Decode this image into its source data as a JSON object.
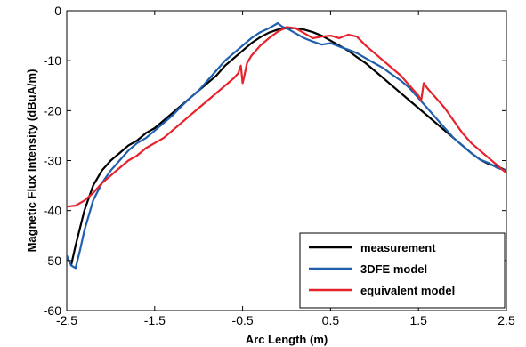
{
  "chart_data": {
    "type": "line",
    "title": "",
    "xlabel": "Arc Length (m)",
    "ylabel": "Magnetic Flux Intensity (dBuA/m)",
    "xlim": [
      -2.5,
      2.5
    ],
    "ylim": [
      -60,
      0
    ],
    "xticks": [
      -2.5,
      -1.5,
      -0.5,
      0.5,
      1.5,
      2.5
    ],
    "xtick_labels": [
      "-2.5",
      "-1.5",
      "-0.5",
      "0.5",
      "1.5",
      "2.5"
    ],
    "yticks": [
      0,
      -10,
      -20,
      -30,
      -40,
      -50,
      -60
    ],
    "ytick_labels": [
      "0",
      "-10",
      "-20",
      "-30",
      "-40",
      "-50",
      "-60"
    ],
    "grid": false,
    "legend_position": "bottom-right",
    "series": [
      {
        "name": "measurement",
        "color": "#000000",
        "x": [
          -2.45,
          -2.4,
          -2.3,
          -2.2,
          -2.1,
          -2.0,
          -1.9,
          -1.8,
          -1.7,
          -1.6,
          -1.5,
          -1.4,
          -1.3,
          -1.2,
          -1.1,
          -1.0,
          -0.9,
          -0.8,
          -0.7,
          -0.6,
          -0.5,
          -0.4,
          -0.3,
          -0.2,
          -0.1,
          0.0,
          0.1,
          0.2,
          0.3,
          0.4,
          0.5,
          0.6,
          0.7,
          0.8,
          0.9,
          1.0,
          1.1,
          1.2,
          1.3,
          1.4,
          1.5,
          1.6,
          1.7,
          1.8,
          1.9,
          2.0,
          2.1,
          2.2,
          2.3,
          2.4,
          2.5
        ],
        "y": [
          -51,
          -47,
          -40,
          -35,
          -32,
          -30,
          -28.5,
          -27,
          -26,
          -24.5,
          -23.5,
          -22,
          -20.5,
          -19,
          -17.5,
          -16,
          -14.5,
          -13,
          -11,
          -9.5,
          -8,
          -6.5,
          -5.3,
          -4.4,
          -3.8,
          -3.5,
          -3.5,
          -3.8,
          -4.3,
          -5,
          -6,
          -7,
          -8,
          -9.3,
          -10.5,
          -12,
          -13.5,
          -15,
          -16.5,
          -18,
          -19.5,
          -21,
          -22.5,
          -24,
          -25.5,
          -27,
          -28.5,
          -29.8,
          -30.7,
          -31.2,
          -32
        ]
      },
      {
        "name": "3DFE model",
        "color": "#1f5fae",
        "x": [
          -2.5,
          -2.45,
          -2.4,
          -2.35,
          -2.3,
          -2.2,
          -2.1,
          -2.0,
          -1.9,
          -1.8,
          -1.7,
          -1.6,
          -1.5,
          -1.4,
          -1.3,
          -1.2,
          -1.1,
          -1.0,
          -0.9,
          -0.8,
          -0.7,
          -0.6,
          -0.5,
          -0.4,
          -0.3,
          -0.2,
          -0.15,
          -0.1,
          -0.05,
          0.0,
          0.1,
          0.2,
          0.3,
          0.4,
          0.5,
          0.6,
          0.7,
          0.8,
          0.9,
          1.0,
          1.1,
          1.2,
          1.3,
          1.4,
          1.5,
          1.6,
          1.7,
          1.8,
          1.9,
          2.0,
          2.1,
          2.2,
          2.3,
          2.4,
          2.5
        ],
        "y": [
          -49,
          -51,
          -51.5,
          -48,
          -44,
          -38,
          -34.5,
          -32,
          -30,
          -28,
          -26.5,
          -25.5,
          -24,
          -22.5,
          -21,
          -19.2,
          -17.5,
          -16,
          -14,
          -12,
          -10,
          -8.5,
          -7,
          -5.5,
          -4.3,
          -3.5,
          -3.0,
          -2.5,
          -3.2,
          -3.5,
          -4.5,
          -5.5,
          -6.2,
          -6.8,
          -6.5,
          -7.2,
          -7.8,
          -8.5,
          -9.5,
          -10.5,
          -11.5,
          -12.8,
          -14,
          -15.5,
          -17.5,
          -19.5,
          -21.5,
          -23.5,
          -25.5,
          -27,
          -28.5,
          -29.8,
          -30.5,
          -31.5,
          -32
        ]
      },
      {
        "name": "equivalent model",
        "color": "#e8222b",
        "x": [
          -2.5,
          -2.4,
          -2.3,
          -2.2,
          -2.1,
          -2.0,
          -1.9,
          -1.8,
          -1.7,
          -1.6,
          -1.5,
          -1.4,
          -1.3,
          -1.2,
          -1.1,
          -1.0,
          -0.9,
          -0.8,
          -0.7,
          -0.6,
          -0.55,
          -0.52,
          -0.5,
          -0.48,
          -0.45,
          -0.4,
          -0.3,
          -0.2,
          -0.1,
          0.0,
          0.1,
          0.2,
          0.3,
          0.4,
          0.5,
          0.6,
          0.7,
          0.8,
          0.9,
          1.0,
          1.1,
          1.2,
          1.3,
          1.4,
          1.5,
          1.53,
          1.56,
          1.6,
          1.7,
          1.8,
          1.9,
          2.0,
          2.1,
          2.2,
          2.3,
          2.4,
          2.5
        ],
        "y": [
          -39.2,
          -39,
          -38,
          -36.5,
          -34.5,
          -33,
          -31.5,
          -30,
          -29,
          -27.5,
          -26.5,
          -25.5,
          -24,
          -22.5,
          -21,
          -19.5,
          -18,
          -16.5,
          -15,
          -13.5,
          -12.5,
          -11,
          -14.5,
          -13,
          -10.5,
          -9,
          -7,
          -5.5,
          -4.2,
          -3.3,
          -3.5,
          -4.5,
          -5.5,
          -5.2,
          -5.0,
          -5.5,
          -4.8,
          -5.2,
          -7,
          -8.5,
          -10,
          -11.5,
          -13,
          -15,
          -17,
          -18,
          -14.5,
          -15.5,
          -17.5,
          -19.5,
          -22,
          -24.5,
          -26.5,
          -28,
          -29.5,
          -31,
          -32.5
        ]
      }
    ]
  }
}
